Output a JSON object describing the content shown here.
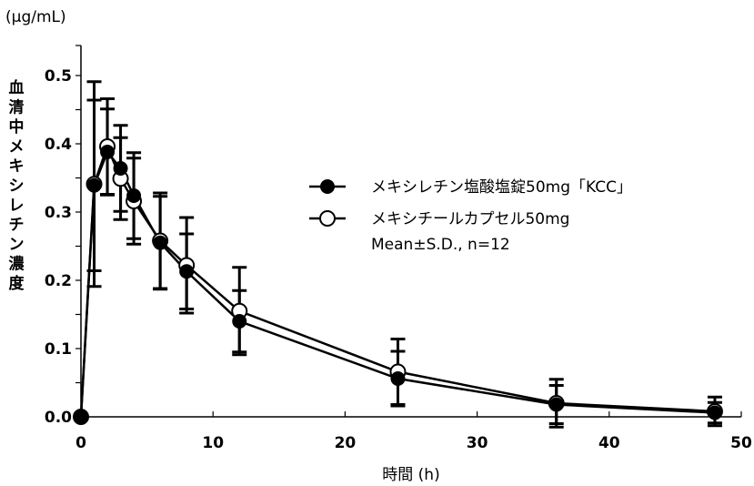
{
  "chart_data": {
    "type": "line",
    "unit_label": "(μg/mL)",
    "ylabel": "血清中メキシレチン濃度",
    "xlabel": "時間 (h)",
    "xlim": [
      0,
      50
    ],
    "ylim": [
      0,
      0.5
    ],
    "xticks": [
      "0",
      "10",
      "20",
      "30",
      "40",
      "50"
    ],
    "yticks": [
      "0.0",
      "0.1",
      "0.2",
      "0.3",
      "0.4",
      "0.5"
    ],
    "x": [
      0,
      1,
      2,
      3,
      4,
      6,
      8,
      12,
      24,
      36,
      48
    ],
    "series": [
      {
        "name": "メキシレチン塩酸塩錠50mg「KCC」",
        "marker": "filled-circle",
        "values": [
          0,
          0.339,
          0.388,
          0.364,
          0.324,
          0.255,
          0.213,
          0.14,
          0.056,
          0.018,
          0.006
        ],
        "sd": [
          0,
          0.125,
          0.063,
          0.063,
          0.063,
          0.068,
          0.055,
          0.045,
          0.04,
          0.028,
          0.015
        ]
      },
      {
        "name": "メキシチールカプセル50mg",
        "marker": "open-circle",
        "values": [
          0,
          0.341,
          0.396,
          0.349,
          0.316,
          0.258,
          0.222,
          0.155,
          0.066,
          0.02,
          0.008
        ],
        "sd": [
          0,
          0.15,
          0.07,
          0.06,
          0.063,
          0.07,
          0.07,
          0.064,
          0.048,
          0.035,
          0.021
        ]
      }
    ],
    "legend_note": "Mean±S.D., n=12",
    "legend_position": "right-center",
    "grid": false
  }
}
